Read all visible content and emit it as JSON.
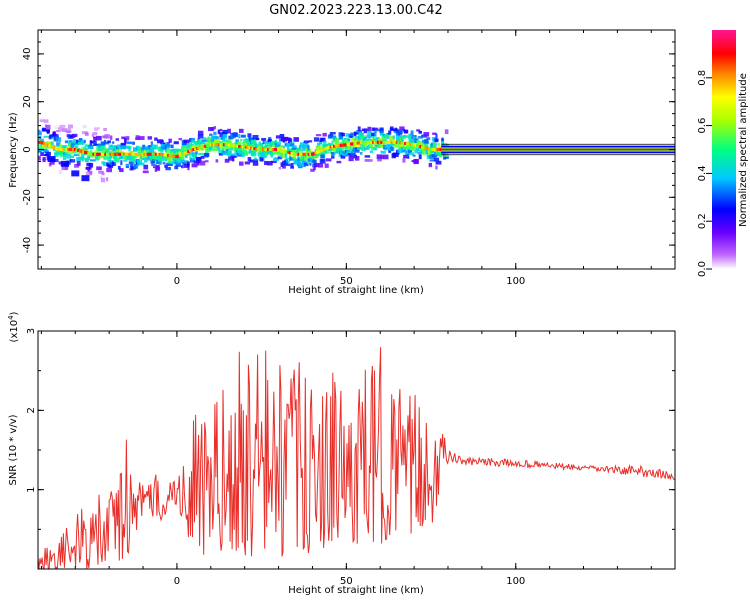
{
  "title": "GN02.2023.223.13.00.C42",
  "chart_data": [
    {
      "type": "heatmap",
      "xlabel": "Height of straight line (km)",
      "ylabel": "Frequency (Hz)",
      "xlim": [
        -41,
        147
      ],
      "ylim": [
        -50,
        50
      ],
      "xticks": [
        0,
        50,
        100
      ],
      "yticks": [
        -40,
        -20,
        0,
        20,
        40
      ],
      "colorbar": {
        "label": "Normalized spectral amplitude",
        "ticks": [
          "0.0",
          "0.2",
          "0.4",
          "0.6",
          "0.8"
        ],
        "range": [
          0,
          1
        ],
        "colormap": [
          "#ffffff",
          "#7a00ff",
          "#0000ff",
          "#00ffff",
          "#00ff00",
          "#ffff00",
          "#ff8000",
          "#ff0000",
          "#ff1493"
        ]
      },
      "ridge": {
        "x": [
          -40,
          -35,
          -30,
          -25,
          -20,
          -15,
          -10,
          -5,
          0,
          5,
          10,
          15,
          20,
          25,
          30,
          35,
          40,
          45,
          50,
          55,
          60,
          65,
          70,
          75,
          80,
          147
        ],
        "freq_hz": [
          3,
          0,
          0,
          -2,
          -2,
          -2,
          -2,
          -2,
          -3,
          0,
          2,
          2,
          1,
          0,
          0,
          -2,
          -2,
          1,
          2,
          3,
          3,
          3,
          2,
          0,
          0,
          0
        ]
      },
      "grid": false,
      "legend": "none"
    },
    {
      "type": "line",
      "xlabel": "Height of straight line (km)",
      "ylabel": "SNR (10 * v/v)",
      "multiplier_label": "(x10^4)",
      "xlim": [
        -41,
        147
      ],
      "ylim": [
        0,
        30000
      ],
      "xticks": [
        0,
        50,
        100
      ],
      "yticks": [
        10000,
        20000,
        30000
      ],
      "ytick_labels": [
        "1",
        "2",
        "3"
      ],
      "color": "#e8302b",
      "envelope": {
        "x": [
          -41,
          -35,
          -30,
          -25,
          -20,
          -15,
          -10,
          -5,
          0,
          5,
          10,
          15,
          20,
          25,
          30,
          35,
          40,
          45,
          50,
          55,
          60,
          65,
          70,
          75,
          80,
          85,
          90,
          100,
          110,
          120,
          130,
          140,
          147
        ],
        "max": [
          2500,
          4000,
          7000,
          9000,
          10000,
          17000,
          10500,
          13000,
          11500,
          20000,
          22000,
          23000,
          30000,
          29000,
          28000,
          27000,
          23000,
          25000,
          24000,
          25000,
          28500,
          23500,
          22000,
          24000,
          15000,
          14000,
          14000,
          13800,
          13500,
          13000,
          13000,
          13000,
          12000
        ],
        "min": [
          0,
          0,
          0,
          0,
          500,
          1000,
          7000,
          6000,
          8000,
          2000,
          0,
          3000,
          500,
          2000,
          1000,
          2000,
          2000,
          3000,
          3000,
          3000,
          3000,
          5000,
          4000,
          5000,
          13500,
          13000,
          13000,
          12800,
          12600,
          12400,
          12000,
          11500,
          11000
        ]
      },
      "grid": false,
      "legend": "none"
    }
  ]
}
